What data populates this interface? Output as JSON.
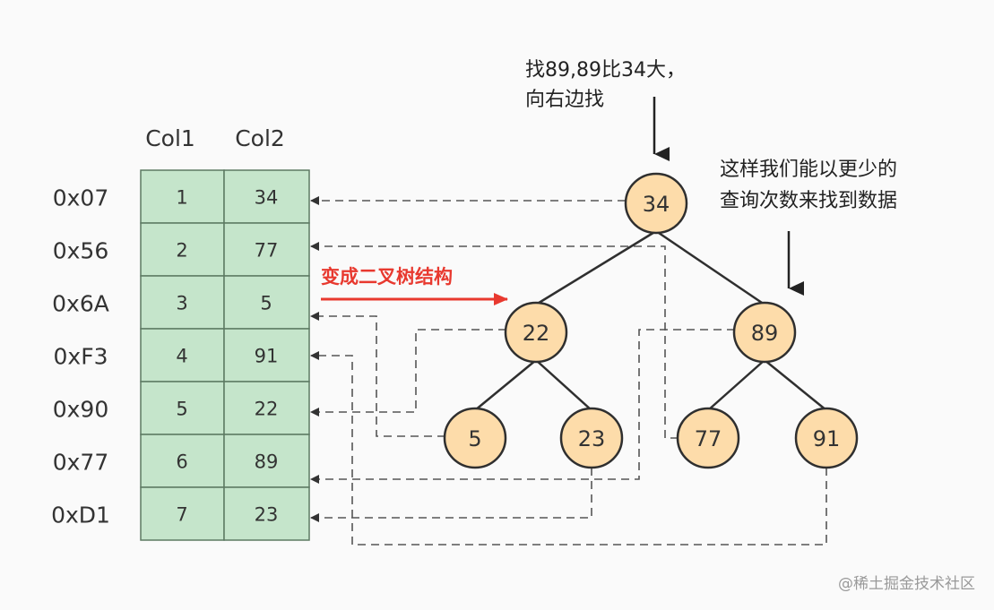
{
  "table": {
    "headers": [
      "Col1",
      "Col2"
    ],
    "rows": [
      {
        "addr": "0x07",
        "col1": "1",
        "col2": "34"
      },
      {
        "addr": "0x56",
        "col1": "2",
        "col2": "77"
      },
      {
        "addr": "0x6A",
        "col1": "3",
        "col2": "5"
      },
      {
        "addr": "0xF3",
        "col1": "4",
        "col2": "91"
      },
      {
        "addr": "0x90",
        "col1": "5",
        "col2": "22"
      },
      {
        "addr": "0x77",
        "col1": "6",
        "col2": "89"
      },
      {
        "addr": "0xD1",
        "col1": "7",
        "col2": "23"
      }
    ]
  },
  "tree": {
    "nodes": [
      "34",
      "22",
      "89",
      "5",
      "23",
      "77",
      "91"
    ]
  },
  "annotations": {
    "transform_label": "变成二叉树结构",
    "search_note_line1": "找89,89比34大，",
    "search_note_line2": "向右边找",
    "benefit_line1": "这样我们能以更少的",
    "benefit_line2": "查询次数来找到数据"
  },
  "watermark": "@稀土掘金技术社区",
  "colors": {
    "cell": "#c5e5cb",
    "node": "#fddcaa",
    "accent": "#e8392f"
  }
}
